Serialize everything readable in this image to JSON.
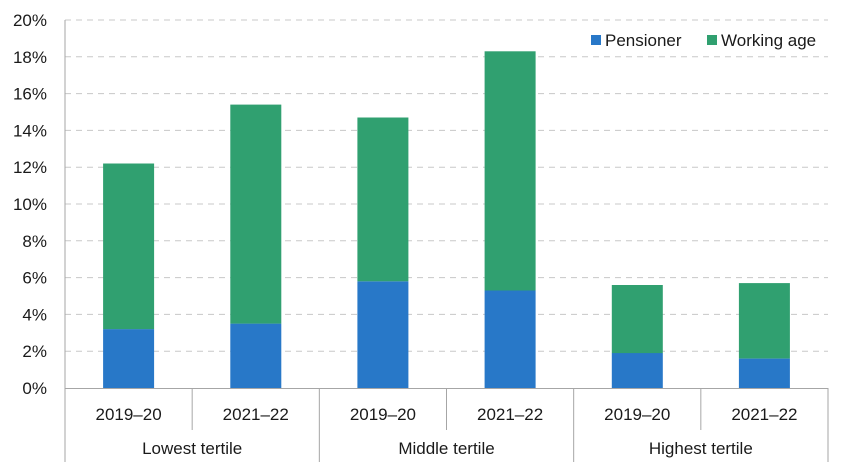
{
  "chart_data": {
    "type": "bar",
    "stacked": true,
    "categories": [
      "2019–20",
      "2021–22",
      "2019–20",
      "2021–22",
      "2019–20",
      "2021–22"
    ],
    "groups": [
      {
        "label": "Lowest tertile",
        "size": 2
      },
      {
        "label": "Middle tertile",
        "size": 2
      },
      {
        "label": "Highest tertile",
        "size": 2
      }
    ],
    "series": [
      {
        "name": "Pensioner",
        "color": "#2878c8",
        "values": [
          3.2,
          3.5,
          5.8,
          5.3,
          1.9,
          1.6
        ]
      },
      {
        "name": "Working age",
        "color": "#30a070",
        "values": [
          9.0,
          11.9,
          8.9,
          13.0,
          3.7,
          4.1
        ]
      }
    ],
    "ylim": [
      0,
      20
    ],
    "yticks": [
      0,
      2,
      4,
      6,
      8,
      10,
      12,
      14,
      16,
      18,
      20
    ],
    "ytick_format": "percent",
    "grid": true,
    "legend_position": "top-right"
  }
}
